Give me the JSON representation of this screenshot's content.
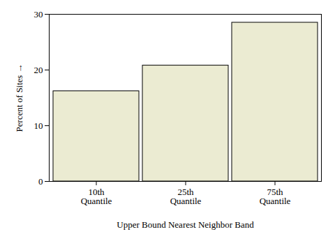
{
  "chart_data": {
    "type": "bar",
    "categories": [
      "10th\nQuantile",
      "25th\nQuantile",
      "75th\nQuantile"
    ],
    "values": [
      16.2,
      20.8,
      28.5
    ],
    "color": "#ebebd2",
    "x_label": "Upper Bound Nearest Neighbor Band",
    "y_label": "Percent of Sites",
    "ylim": [
      0,
      30
    ],
    "yticks": [
      0,
      10,
      20,
      30
    ],
    "grid": false
  }
}
